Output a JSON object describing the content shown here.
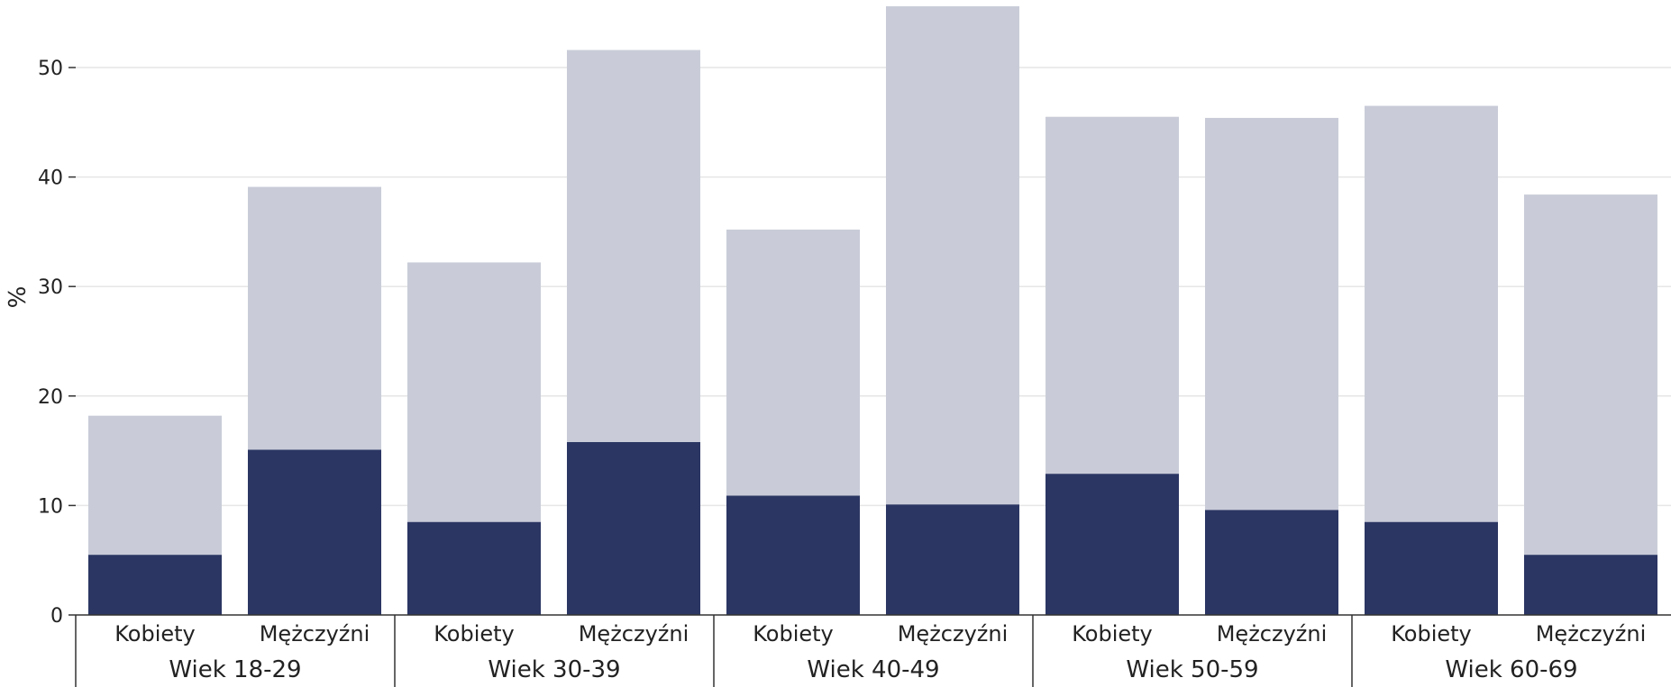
{
  "chart_data": {
    "type": "bar",
    "stacked": true,
    "ylabel": "%",
    "ylim": [
      0,
      56
    ],
    "yticks": [
      0,
      10,
      20,
      30,
      40,
      50
    ],
    "grid": true,
    "legend": "none",
    "groups": [
      {
        "label": "Wiek 18-29",
        "categories": [
          "Kobiety",
          "Mężczyźni"
        ]
      },
      {
        "label": "Wiek 30-39",
        "categories": [
          "Kobiety",
          "Mężczyźni"
        ]
      },
      {
        "label": "Wiek 40-49",
        "categories": [
          "Kobiety",
          "Mężczyźni"
        ]
      },
      {
        "label": "Wiek 50-59",
        "categories": [
          "Kobiety",
          "Mężczyźni"
        ]
      },
      {
        "label": "Wiek 60-69",
        "categories": [
          "Kobiety",
          "Mężczyźni"
        ]
      }
    ],
    "series": [
      {
        "color": "#2b3663",
        "values": [
          5.5,
          15.1,
          8.5,
          15.8,
          10.9,
          10.1,
          12.9,
          9.6,
          8.5,
          5.5
        ]
      },
      {
        "color": "#c9ccd8",
        "values": [
          12.7,
          24.0,
          23.7,
          35.8,
          24.3,
          45.5,
          32.6,
          35.8,
          38.0,
          32.9
        ]
      }
    ]
  }
}
